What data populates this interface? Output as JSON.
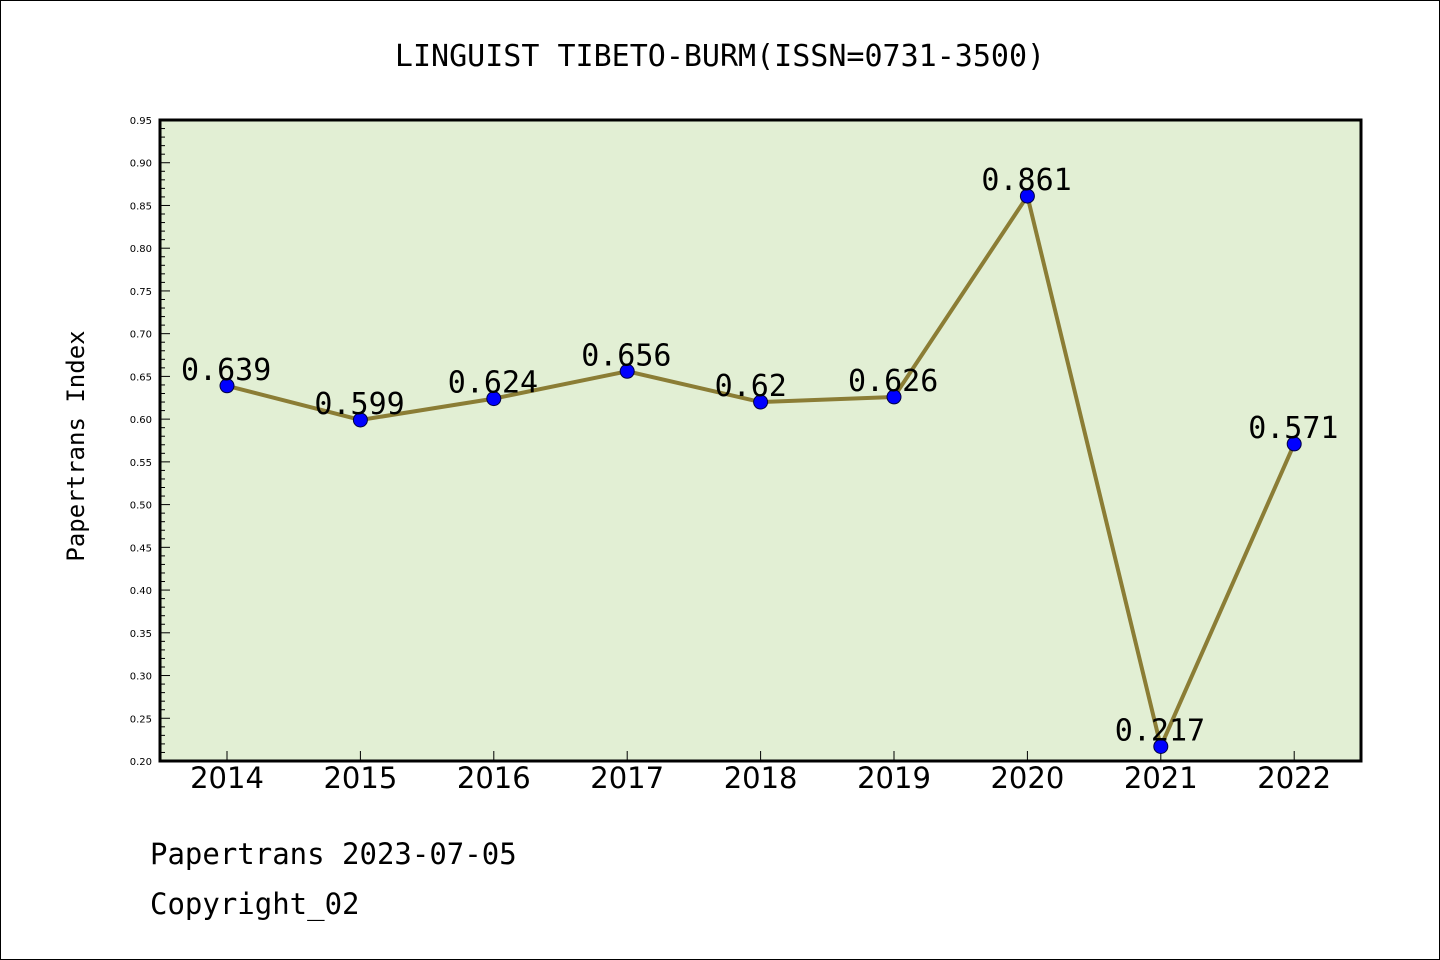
{
  "chart_data": {
    "type": "line",
    "title": "LINGUIST TIBETO-BURM(ISSN=0731-3500)",
    "ylabel": "Papertrans Index",
    "xlabel": "",
    "categories": [
      "2014",
      "2015",
      "2016",
      "2017",
      "2018",
      "2019",
      "2020",
      "2021",
      "2022"
    ],
    "series": [
      {
        "values": [
          0.639,
          0.599,
          0.624,
          0.656,
          0.62,
          0.626,
          0.861,
          0.217,
          0.571
        ],
        "labels": [
          "0.639",
          "0.599",
          "0.624",
          "0.656",
          "0.62",
          "0.626",
          "0.861",
          "0.217",
          "0.571"
        ],
        "line_color": "#8b7d35",
        "marker_color": "#0000ff"
      }
    ],
    "ylim": [
      0.2,
      0.95
    ],
    "yticks": [
      "0.20",
      "0.25",
      "0.30",
      "0.35",
      "0.40",
      "0.45",
      "0.50",
      "0.55",
      "0.60",
      "0.65",
      "0.70",
      "0.75",
      "0.80",
      "0.85",
      "0.90",
      "0.95"
    ],
    "grid": false,
    "plot_background": "#e2efd4"
  },
  "footer": {
    "line1": "Papertrans 2023-07-05",
    "line2": "Copyright_02"
  }
}
